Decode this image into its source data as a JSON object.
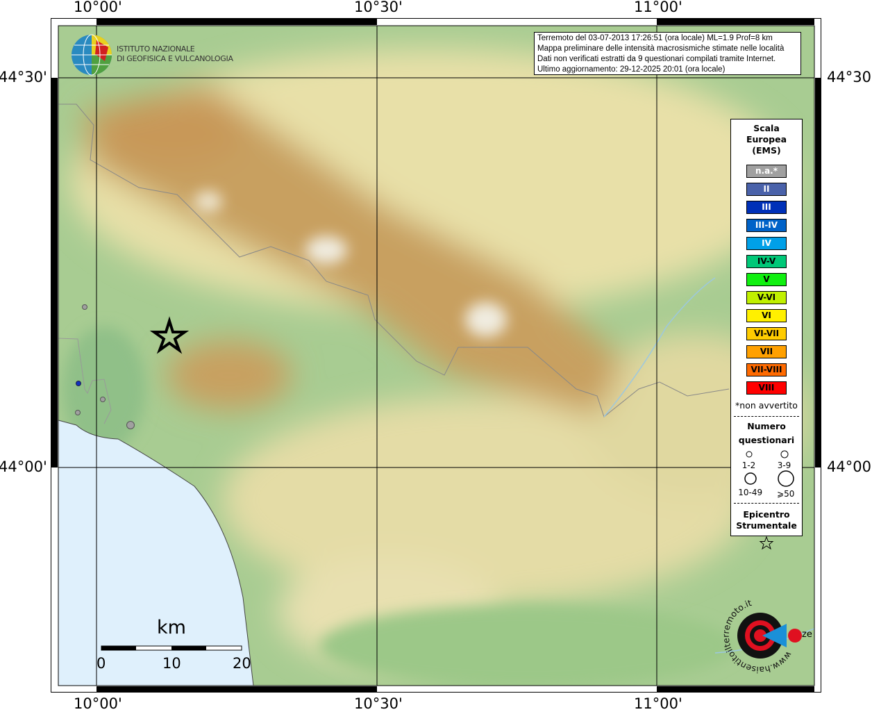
{
  "axes": {
    "lon_labels": [
      "10°00'",
      "10°30'",
      "11°00'"
    ],
    "lat_labels": [
      "44°30'",
      "44°00'"
    ]
  },
  "logo": {
    "line1": "ISTITUTO NAZIONALE",
    "line2": "DI GEOFISICA E VULCANOLOGIA"
  },
  "info": {
    "lines": [
      "Terremoto del 03-07-2013 17:26:51 (ora locale) ML=1.9 Prof=8 km",
      "Mappa preliminare delle intensità macrosismiche stimate nelle località",
      "Dati non verificati estratti da 9 questionari compilati tramite Internet.",
      "Ultimo aggiornamento: 29-12-2025 20:01 (ora locale)"
    ]
  },
  "legend": {
    "title": [
      "Scala",
      "Europea",
      "(EMS)"
    ],
    "scale": [
      {
        "label": "n.a.*",
        "color": "#a0a0a0",
        "text": "#fff"
      },
      {
        "label": "II",
        "color": "#4a62aa",
        "text": "#fff"
      },
      {
        "label": "III",
        "color": "#0030b8",
        "text": "#fff"
      },
      {
        "label": "III-IV",
        "color": "#0062c8",
        "text": "#fff"
      },
      {
        "label": "IV",
        "color": "#00a0e8",
        "text": "#fff"
      },
      {
        "label": "IV-V",
        "color": "#00c878",
        "text": "#000"
      },
      {
        "label": "V",
        "color": "#10f010",
        "text": "#000"
      },
      {
        "label": "V-VI",
        "color": "#c0f000",
        "text": "#000"
      },
      {
        "label": "VI",
        "color": "#fff000",
        "text": "#000"
      },
      {
        "label": "VI-VII",
        "color": "#ffcc00",
        "text": "#000"
      },
      {
        "label": "VII",
        "color": "#ffa000",
        "text": "#000"
      },
      {
        "label": "VII-VIII",
        "color": "#ff6a00",
        "text": "#000"
      },
      {
        "label": "VIII",
        "color": "#ff0000",
        "text": "#000"
      }
    ],
    "note": "*non avvertito",
    "count_title": [
      "Numero",
      "questionari"
    ],
    "counts": [
      "1-2",
      "3-9",
      "10-49",
      "⩾50"
    ],
    "epicenter_title": [
      "Epicentro",
      "Strumentale"
    ]
  },
  "scalebar": {
    "unit": "km",
    "labels": [
      "0",
      "10",
      "20"
    ]
  },
  "place_label": "ze",
  "brand": {
    "text": "www.haisentitoilterremoto.it"
  },
  "points": [
    {
      "intensity": "n.a.*"
    },
    {
      "intensity": "II"
    },
    {
      "intensity": "n.a.*"
    },
    {
      "intensity": "n.a.*"
    },
    {
      "intensity": "n.a.*"
    }
  ]
}
